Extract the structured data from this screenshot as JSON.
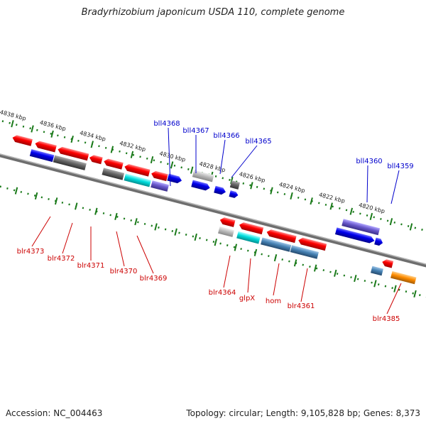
{
  "title": "Bradyrhizobium japonicum USDA 110, complete genome",
  "footer": {
    "accession": "Accession: NC_004463",
    "topology": "Topology: circular; Length: 9,105,828 bp; Genes: 8,373"
  },
  "colors": {
    "red": "#ff0000",
    "blue": "#0000ee",
    "gray": "#666666",
    "light_gray": "#bbbbbb",
    "cyan": "#00dddd",
    "purple": "#6a5acd",
    "steel_blue": "#4682b4",
    "orange": "#ff8c00",
    "axis_green": "#1a7a1a",
    "label_red": "#cc0000",
    "label_blue": "#0000cc"
  },
  "scale_labels": [
    "4838 kbp",
    "4836 kbp",
    "4834 kbp",
    "4832 kbp",
    "4830 kbp",
    "4828 kbp",
    "4826 kbp",
    "4824 kbp",
    "4822 kbp",
    "4820 kbp"
  ],
  "genes_top": [
    {
      "name": "bll4368"
    },
    {
      "name": "bll4367"
    },
    {
      "name": "bll4366"
    },
    {
      "name": "bll4365"
    },
    {
      "name": "bll4360"
    },
    {
      "name": "bll4359"
    }
  ],
  "genes_bottom": [
    {
      "name": "blr4373"
    },
    {
      "name": "blr4372"
    },
    {
      "name": "blr4371"
    },
    {
      "name": "blr4370"
    },
    {
      "name": "blr4369"
    },
    {
      "name": "blr4364"
    },
    {
      "name": "glpX"
    },
    {
      "name": "hom"
    },
    {
      "name": "blr4361"
    },
    {
      "name": "blr4385"
    }
  ]
}
